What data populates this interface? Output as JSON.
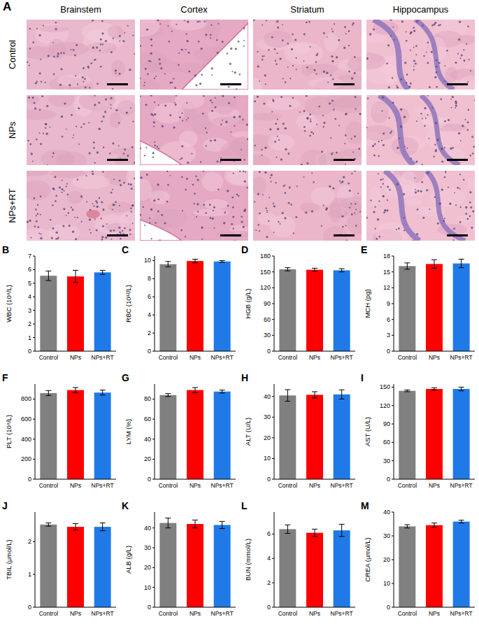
{
  "figure": {
    "label": "A",
    "columns": [
      "Brainstem",
      "Cortex",
      "Striatum",
      "Hippocampus"
    ],
    "rows": [
      "Control",
      "NPs",
      "NPs+RT"
    ]
  },
  "chart_data": [
    {
      "type": "bar",
      "title": "B",
      "y_label": "WBC (10⁹/L)",
      "categories": [
        "Control",
        "NPs",
        "NPs+RT"
      ],
      "values": [
        5.55,
        5.5,
        5.8
      ],
      "errors": [
        0.35,
        0.45,
        0.15
      ],
      "colors": [
        "#808080",
        "#ff0000",
        "#1f7ae8"
      ],
      "ylim": [
        0,
        7
      ],
      "yticks": [
        0,
        1,
        2,
        3,
        4,
        5,
        6,
        7
      ]
    },
    {
      "type": "bar",
      "title": "C",
      "y_label": "RBC (10¹²/L)",
      "categories": [
        "Control",
        "NPs",
        "NPs+RT"
      ],
      "values": [
        9.6,
        9.95,
        9.9
      ],
      "errors": [
        0.3,
        0.2,
        0.1
      ],
      "colors": [
        "#808080",
        "#ff0000",
        "#1f7ae8"
      ],
      "ylim": [
        0,
        10.5
      ],
      "yticks": [
        0,
        2,
        4,
        6,
        8,
        10
      ]
    },
    {
      "type": "bar",
      "title": "D",
      "y_label": "HGB (g/L)",
      "categories": [
        "Control",
        "NPs",
        "NPs+RT"
      ],
      "values": [
        155,
        154,
        153
      ],
      "errors": [
        3,
        3,
        3
      ],
      "colors": [
        "#808080",
        "#ff0000",
        "#1f7ae8"
      ],
      "ylim": [
        0,
        180
      ],
      "yticks": [
        0,
        30,
        60,
        90,
        120,
        150,
        180
      ]
    },
    {
      "type": "bar",
      "title": "E",
      "y_label": "MCH (pg)",
      "categories": [
        "Control",
        "NPs",
        "NPs+RT"
      ],
      "values": [
        16.1,
        16.5,
        16.6
      ],
      "errors": [
        0.6,
        0.8,
        0.8
      ],
      "colors": [
        "#808080",
        "#ff0000",
        "#1f7ae8"
      ],
      "ylim": [
        0,
        18
      ],
      "yticks": [
        0,
        3,
        6,
        9,
        12,
        15,
        18
      ]
    },
    {
      "type": "bar",
      "title": "F",
      "y_label": "PLT (10⁹/L)",
      "categories": [
        "Control",
        "NPs",
        "NPs+RT"
      ],
      "values": [
        860,
        890,
        865
      ],
      "errors": [
        25,
        25,
        25
      ],
      "colors": [
        "#808080",
        "#ff0000",
        "#1f7ae8"
      ],
      "ylim": [
        0,
        950
      ],
      "yticks": [
        0,
        200,
        400,
        600,
        800
      ]
    },
    {
      "type": "bar",
      "title": "G",
      "y_label": "LYM (%)",
      "categories": [
        "Control",
        "NPs",
        "NPs+RT"
      ],
      "values": [
        84,
        89,
        87.5
      ],
      "errors": [
        1.5,
        2.5,
        1.5
      ],
      "colors": [
        "#808080",
        "#ff0000",
        "#1f7ae8"
      ],
      "ylim": [
        0,
        95
      ],
      "yticks": [
        0,
        20,
        40,
        60,
        80
      ]
    },
    {
      "type": "bar",
      "title": "H",
      "y_label": "ALT (U/L)",
      "categories": [
        "Control",
        "NPs",
        "NPs+RT"
      ],
      "values": [
        40.5,
        40.8,
        41
      ],
      "errors": [
        2.8,
        1.5,
        2.2
      ],
      "colors": [
        "#808080",
        "#ff0000",
        "#1f7ae8"
      ],
      "ylim": [
        0,
        46
      ],
      "yticks": [
        0,
        10,
        20,
        30,
        40
      ]
    },
    {
      "type": "bar",
      "title": "I",
      "y_label": "AST (U/L)",
      "categories": [
        "Control",
        "NPs",
        "NPs+RT"
      ],
      "values": [
        144,
        147,
        147
      ],
      "errors": [
        1.5,
        2,
        3
      ],
      "colors": [
        "#808080",
        "#ff0000",
        "#1f7ae8"
      ],
      "ylim": [
        0,
        155
      ],
      "yticks": [
        0,
        30,
        60,
        90,
        120,
        150
      ]
    },
    {
      "type": "bar",
      "title": "J",
      "y_label": "TBIL (μmol/L)",
      "categories": [
        "Control",
        "NPs",
        "NPs+RT"
      ],
      "values": [
        2.52,
        2.45,
        2.45
      ],
      "errors": [
        0.05,
        0.1,
        0.12
      ],
      "colors": [
        "#808080",
        "#ff0000",
        "#1f7ae8"
      ],
      "ylim": [
        0,
        2.9
      ],
      "yticks": [
        0,
        1,
        2
      ]
    },
    {
      "type": "bar",
      "title": "K",
      "y_label": "ALB (g/L)",
      "categories": [
        "Control",
        "NPs",
        "NPs+RT"
      ],
      "values": [
        42.5,
        42,
        41.5
      ],
      "errors": [
        2.5,
        2,
        1.8
      ],
      "colors": [
        "#808080",
        "#ff0000",
        "#1f7ae8"
      ],
      "ylim": [
        0,
        48
      ],
      "yticks": [
        0,
        10,
        20,
        30,
        40
      ]
    },
    {
      "type": "bar",
      "title": "L",
      "y_label": "BUN (mmol/L)",
      "categories": [
        "Control",
        "NPs",
        "NPs+RT"
      ],
      "values": [
        6.4,
        6.1,
        6.3
      ],
      "errors": [
        0.35,
        0.3,
        0.5
      ],
      "colors": [
        "#808080",
        "#ff0000",
        "#1f7ae8"
      ],
      "ylim": [
        0,
        7.8
      ],
      "yticks": [
        0,
        2,
        4,
        6
      ]
    },
    {
      "type": "bar",
      "title": "M",
      "y_label": "CREA (μmol/L)",
      "categories": [
        "Control",
        "NPs",
        "NPs+RT"
      ],
      "values": [
        34,
        34.5,
        36
      ],
      "errors": [
        0.7,
        0.9,
        0.6
      ],
      "colors": [
        "#808080",
        "#ff0000",
        "#1f7ae8"
      ],
      "ylim": [
        0,
        40
      ],
      "yticks": [
        0,
        10,
        20,
        30,
        40
      ]
    }
  ]
}
